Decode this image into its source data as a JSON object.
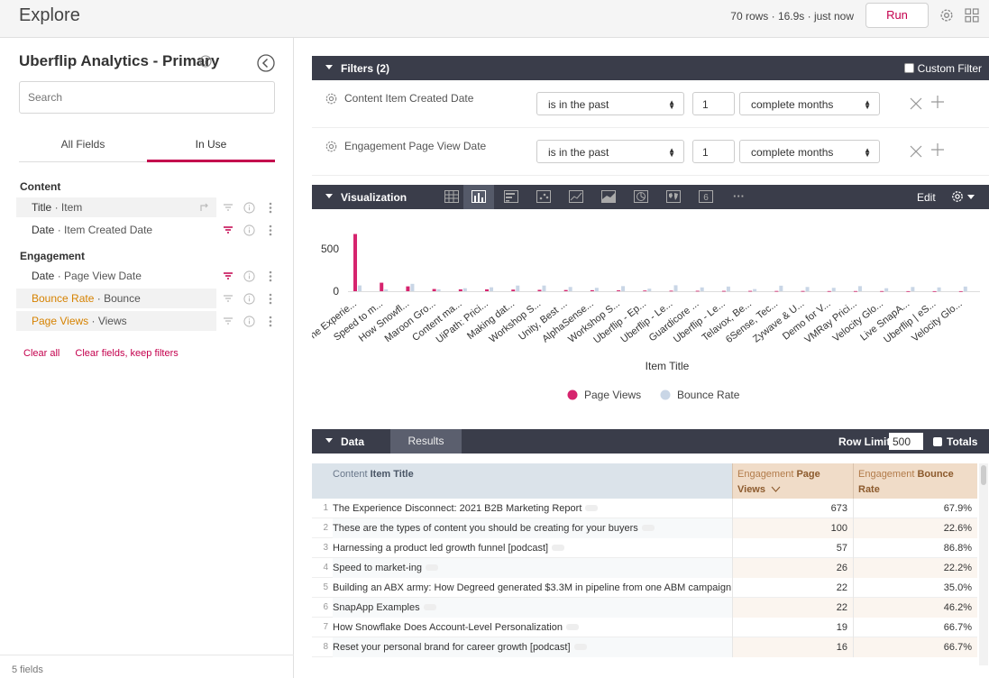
{
  "header": {
    "title": "Explore",
    "meta": "70 rows · 16.9s · just now",
    "run_label": "Run"
  },
  "sidebar": {
    "model_title": "Uberflip Analytics - Primary",
    "search_placeholder": "Search",
    "tabs": [
      {
        "label": "All Fields"
      },
      {
        "label": "In Use"
      }
    ],
    "groups": [
      {
        "label": "Content"
      },
      {
        "label": "Engagement"
      }
    ],
    "fields": [
      {
        "view": "Title",
        "name": "Item",
        "type": "dimension",
        "selected": true
      },
      {
        "view": "Date",
        "name": "Item Created Date",
        "type": "dimension",
        "selected": false
      },
      {
        "view": "Date",
        "name": "Page View Date",
        "type": "dimension",
        "selected": false
      },
      {
        "view": "Bounce Rate",
        "name": "Bounce",
        "type": "measure",
        "selected": true
      },
      {
        "view": "Page Views",
        "name": "Views",
        "type": "measure",
        "selected": true
      }
    ],
    "sep": " · ",
    "clear_all": "Clear all",
    "clear_fields": "Clear fields, keep filters",
    "footer": "5 fields"
  },
  "filters": {
    "title": "Filters (2)",
    "custom_filter_label": "Custom Filter",
    "rows": [
      {
        "name": "Content Item Created Date",
        "operator": "is in the past",
        "value": "1",
        "unit": "complete months"
      },
      {
        "name": "Engagement Page View Date",
        "operator": "is in the past",
        "value": "1",
        "unit": "complete months"
      }
    ]
  },
  "visualization": {
    "title": "Visualization",
    "edit_label": "Edit",
    "table_calc_label": "6",
    "more_label": "···"
  },
  "chart_data": {
    "type": "bar",
    "xlabel": "Item Title",
    "ylabel": "",
    "yticks": [
      0,
      500
    ],
    "ylim": [
      0,
      700
    ],
    "legend_position": "bottom",
    "categories": [
      "The Experie...",
      "Speed to m...",
      "How Snowfl...",
      "Maroon Gro...",
      "Content ma...",
      "UiPath: Prici...",
      "Making dat...",
      "Workshop S...",
      "Unity, Best ...",
      "AlphaSense...",
      "Workshop S...",
      "Uberflip - Ep...",
      "Uberflip - Le...",
      "Guardicore ...",
      "Uberflip - Le...",
      "Telavox, Be...",
      "6Sense, Tec...",
      "Zywave & U...",
      "Demo for V...",
      "VMRay Prici...",
      "Velocity Glo...",
      "Live SnapA...",
      "Uberflip | eS...",
      "Velocity Glo..."
    ],
    "series": [
      {
        "name": "Page Views",
        "color": "#d6246e",
        "values": [
          673,
          100,
          57,
          26,
          22,
          22,
          19,
          16,
          14,
          12,
          10,
          8,
          6,
          5,
          4,
          4,
          3,
          3,
          2,
          2,
          2,
          1,
          1,
          1
        ]
      },
      {
        "name": "Bounce Rate",
        "color": "#c9d6e6",
        "values": [
          67.9,
          22.6,
          86.8,
          22.2,
          35.0,
          46.2,
          66.7,
          66.7,
          50,
          40,
          60,
          30,
          70,
          45,
          55,
          25,
          65,
          50,
          40,
          60,
          35,
          50,
          45,
          55
        ]
      }
    ]
  },
  "data_section": {
    "title": "Data",
    "results_tab": "Results",
    "row_limit_label": "Row Limit",
    "row_limit_value": "500",
    "totals_label": "Totals",
    "columns": [
      {
        "view": "Content",
        "name": "Item Title"
      },
      {
        "view": "Engagement",
        "name": "Page Views",
        "sort": "desc"
      },
      {
        "view": "Engagement",
        "name": "Bounce Rate"
      }
    ],
    "rows": [
      {
        "n": "1",
        "title": "The Experience Disconnect: 2021 B2B Marketing Report",
        "views": "673",
        "bounce": "67.9%"
      },
      {
        "n": "2",
        "title": "These are the types of content you should be creating for your buyers",
        "views": "100",
        "bounce": "22.6%"
      },
      {
        "n": "3",
        "title": "Harnessing a product led growth funnel [podcast]",
        "views": "57",
        "bounce": "86.8%"
      },
      {
        "n": "4",
        "title": "Speed to market-ing",
        "views": "26",
        "bounce": "22.2%"
      },
      {
        "n": "5",
        "title": "Building an ABX army: How Degreed generated $3.3M in pipeline from one ABM campaign",
        "views": "22",
        "bounce": "35.0%"
      },
      {
        "n": "6",
        "title": "SnapApp Examples",
        "views": "22",
        "bounce": "46.2%"
      },
      {
        "n": "7",
        "title": "How Snowflake Does Account-Level Personalization",
        "views": "19",
        "bounce": "66.7%"
      },
      {
        "n": "8",
        "title": "Reset your personal brand for career growth [podcast]",
        "views": "16",
        "bounce": "66.7%"
      }
    ]
  }
}
